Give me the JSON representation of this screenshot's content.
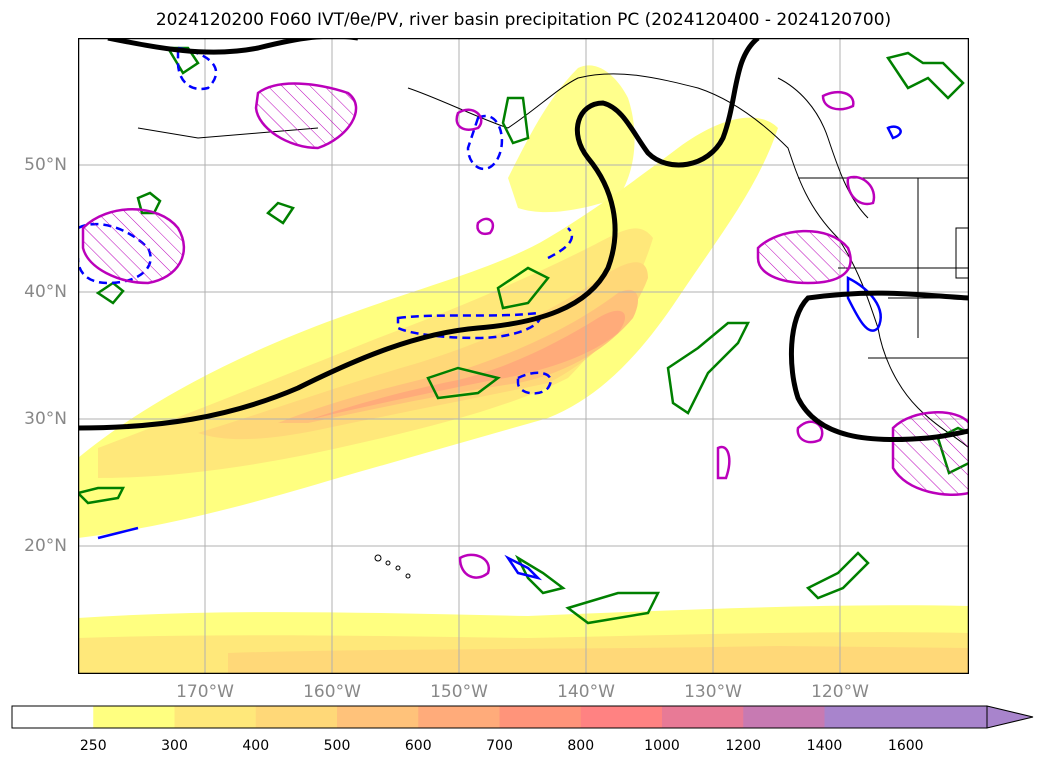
{
  "title": {
    "text": "2024120200 F060 IVT/θe/PV, river basin precipitation PC (2024120400 - 2024120700)"
  },
  "lat_labels": [
    "50°N",
    "40°N",
    "30°N",
    "20°N"
  ],
  "lon_labels": [
    "170°W",
    "160°W",
    "150°W",
    "140°W",
    "130°W",
    "120°W"
  ],
  "colorbar": {
    "ticks": [
      "250",
      "300",
      "400",
      "500",
      "600",
      "700",
      "800",
      "1000",
      "1200",
      "1400",
      "1600"
    ],
    "colors": [
      "#ffffff",
      "#ffff80",
      "#ffe87a",
      "#ffd878",
      "#ffc27a",
      "#ffab7a",
      "#ff947a",
      "#ff8282",
      "#e87a96",
      "#c77ab2",
      "#a884cc"
    ]
  },
  "legend_colors": {
    "theta_e_contour": "#000000",
    "pv_positive": "#008000",
    "pv_negative": "#0000ff",
    "precip_pc": "#bb00bb"
  }
}
